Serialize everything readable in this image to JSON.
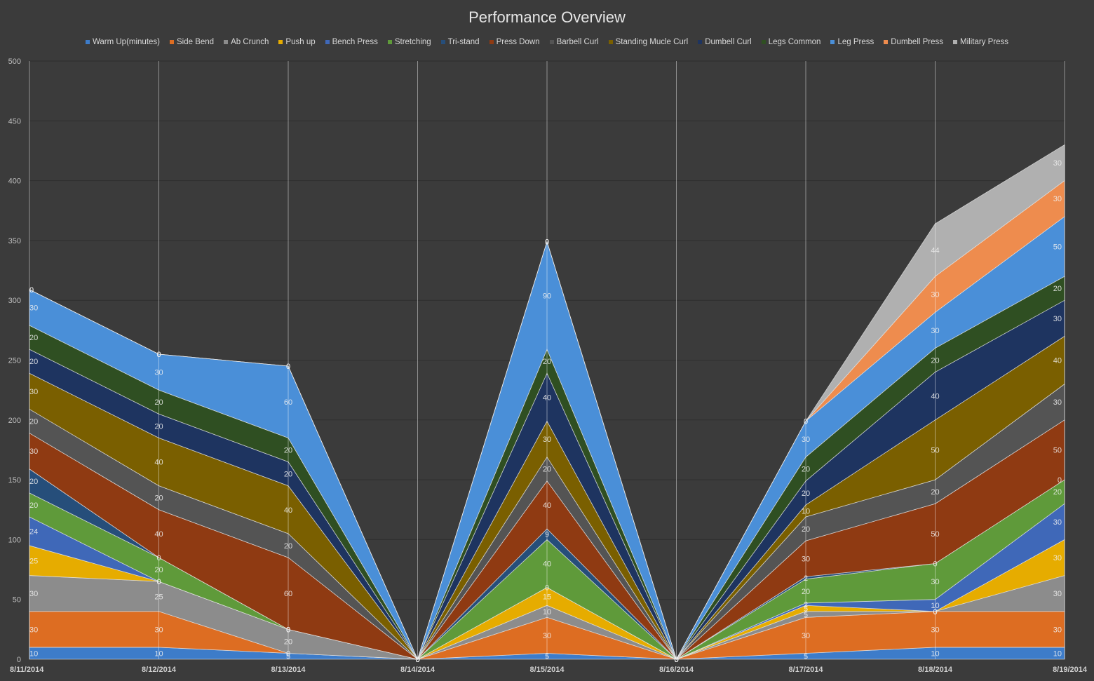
{
  "chart_data": {
    "type": "area",
    "stacked": true,
    "title": "Performance Overview",
    "x": [
      "8/11/2014",
      "8/12/2014",
      "8/13/2014",
      "8/14/2014",
      "8/15/2014",
      "8/16/2014",
      "8/17/2014",
      "8/18/2014",
      "8/19/2014"
    ],
    "ylim": [
      0,
      500
    ],
    "yticks": [
      0,
      50,
      100,
      150,
      200,
      250,
      300,
      350,
      400,
      450,
      500
    ],
    "grid": true,
    "legend_position": "top",
    "background": "#3b3b3b",
    "series": [
      {
        "name": "Warm Up(minutes)",
        "color": "#3d7cc9",
        "values": [
          10,
          10,
          5,
          0,
          5,
          0,
          5,
          10,
          10
        ],
        "labels": [
          "10",
          "10",
          "5",
          "0",
          "5",
          "0",
          "5",
          "10",
          "10"
        ]
      },
      {
        "name": "Side Bend",
        "color": "#dd6d22",
        "values": [
          30,
          30,
          0,
          0,
          30,
          0,
          30,
          30,
          30
        ],
        "labels": [
          "30",
          "30",
          "0",
          "0",
          "30",
          "0",
          "30",
          "30",
          "30"
        ]
      },
      {
        "name": "Ab Crunch",
        "color": "#8c8c8c",
        "values": [
          30,
          25,
          20,
          0,
          10,
          0,
          5,
          0,
          30
        ],
        "labels": [
          "30",
          "25",
          "20",
          "0",
          "10",
          "0",
          "5",
          "0",
          "30"
        ]
      },
      {
        "name": "Push up",
        "color": "#e6ac00",
        "values": [
          25,
          0,
          0,
          0,
          15,
          0,
          5,
          0,
          30
        ],
        "labels": [
          "25",
          "0",
          "0",
          "0",
          "15",
          "0",
          "5",
          "0",
          "30"
        ]
      },
      {
        "name": "Bench Press",
        "color": "#3f68b8",
        "values": [
          24,
          0,
          0,
          0,
          0,
          0,
          2,
          10,
          30
        ],
        "labels": [
          "24",
          "0",
          "0",
          "0",
          "0",
          "0",
          "2",
          "10",
          "30"
        ]
      },
      {
        "name": "Stretching",
        "color": "#5f9a3a",
        "values": [
          20,
          20,
          0,
          0,
          40,
          0,
          20,
          30,
          20
        ],
        "labels": [
          "20",
          "20",
          "0",
          "0",
          "40",
          "0",
          "20",
          "30",
          "20"
        ]
      },
      {
        "name": "Tri-stand",
        "color": "#264e7a",
        "values": [
          20,
          0,
          0,
          0,
          9,
          0,
          2,
          0,
          0
        ],
        "labels": [
          "20",
          "0",
          "0",
          "0",
          "9",
          "0",
          "2",
          "0",
          "0"
        ]
      },
      {
        "name": "Press Down",
        "color": "#8f3a12",
        "values": [
          30,
          40,
          60,
          0,
          40,
          0,
          30,
          50,
          50
        ],
        "labels": [
          "30",
          "40",
          "60",
          "0",
          "40",
          "0",
          "30",
          "50",
          "50"
        ]
      },
      {
        "name": "Barbell Curl",
        "color": "#545454",
        "values": [
          20,
          20,
          20,
          0,
          20,
          0,
          20,
          20,
          30
        ],
        "labels": [
          "20",
          "20",
          "20",
          "0",
          "20",
          "0",
          "20",
          "20",
          "30"
        ]
      },
      {
        "name": "Standing Mucle Curl",
        "color": "#7a5f00",
        "values": [
          30,
          40,
          40,
          0,
          30,
          0,
          10,
          50,
          40
        ],
        "labels": [
          "30",
          "40",
          "40",
          "0",
          "30",
          "0",
          "10",
          "50",
          "40"
        ]
      },
      {
        "name": "Dumbell Curl",
        "color": "#1e3460",
        "values": [
          20,
          20,
          20,
          0,
          40,
          0,
          20,
          40,
          30
        ],
        "labels": [
          "20",
          "20",
          "20",
          "0",
          "40",
          "0",
          "20",
          "40",
          "30"
        ]
      },
      {
        "name": "Legs Common",
        "color": "#2f4f22",
        "values": [
          20,
          20,
          20,
          0,
          20,
          0,
          20,
          20,
          20
        ],
        "labels": [
          "20",
          "20",
          "20",
          "0",
          "20",
          "0",
          "20",
          "20",
          "20"
        ]
      },
      {
        "name": "Leg Press",
        "color": "#4a8fd8",
        "values": [
          30,
          30,
          60,
          0,
          90,
          0,
          30,
          30,
          50
        ],
        "labels": [
          "30",
          "30",
          "60",
          "0",
          "90",
          "0",
          "30",
          "30",
          "50"
        ]
      },
      {
        "name": "Dumbell Press",
        "color": "#ee8c4e",
        "values": [
          0,
          0,
          0,
          0,
          0,
          0,
          0,
          30,
          30
        ],
        "labels": [
          "0",
          "0",
          "0",
          "0",
          "0",
          "0",
          "0",
          "30",
          "30"
        ]
      },
      {
        "name": "Military Press",
        "color": "#b0b0b0",
        "values": [
          0,
          0,
          0,
          0,
          0,
          0,
          0,
          44,
          30
        ],
        "labels": [
          "0",
          "0",
          "0",
          "0",
          "0",
          "0",
          "0",
          "44",
          "30"
        ]
      }
    ]
  }
}
